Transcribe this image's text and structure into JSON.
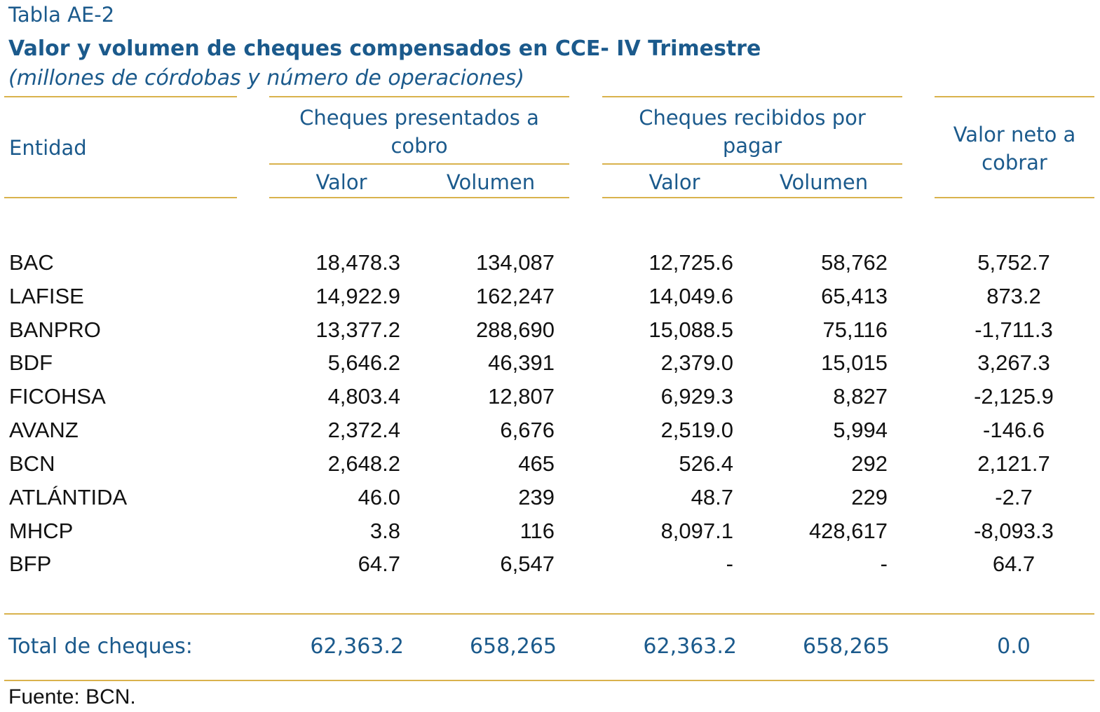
{
  "header": {
    "label": "Tabla AE-2",
    "title": "Valor y volumen de cheques compensados en CCE- IV Trimestre",
    "subtitle": "(millones de córdobas y número de operaciones)"
  },
  "columns": {
    "entity": "Entidad",
    "group_presented_line1": "Cheques presentados a",
    "group_presented_line2": "cobro",
    "group_received_line1": "Cheques recibidos por",
    "group_received_line2": "pagar",
    "net_line1": "Valor neto a",
    "net_line2": "cobrar",
    "valor": "Valor",
    "volumen": "Volumen"
  },
  "rows": [
    {
      "entity": "BAC",
      "pres_valor": "18,478.3",
      "pres_volumen": "134,087",
      "rec_valor": "12,725.6",
      "rec_volumen": "58,762",
      "net": "5,752.7"
    },
    {
      "entity": "LAFISE",
      "pres_valor": "14,922.9",
      "pres_volumen": "162,247",
      "rec_valor": "14,049.6",
      "rec_volumen": "65,413",
      "net": "873.2"
    },
    {
      "entity": "BANPRO",
      "pres_valor": "13,377.2",
      "pres_volumen": "288,690",
      "rec_valor": "15,088.5",
      "rec_volumen": "75,116",
      "net": "-1,711.3"
    },
    {
      "entity": "BDF",
      "pres_valor": "5,646.2",
      "pres_volumen": "46,391",
      "rec_valor": "2,379.0",
      "rec_volumen": "15,015",
      "net": "3,267.3"
    },
    {
      "entity": "FICOHSA",
      "pres_valor": "4,803.4",
      "pres_volumen": "12,807",
      "rec_valor": "6,929.3",
      "rec_volumen": "8,827",
      "net": "-2,125.9"
    },
    {
      "entity": "AVANZ",
      "pres_valor": "2,372.4",
      "pres_volumen": "6,676",
      "rec_valor": "2,519.0",
      "rec_volumen": "5,994",
      "net": "-146.6"
    },
    {
      "entity": "BCN",
      "pres_valor": "2,648.2",
      "pres_volumen": "465",
      "rec_valor": "526.4",
      "rec_volumen": "292",
      "net": "2,121.7"
    },
    {
      "entity": "ATLÁNTIDA",
      "pres_valor": "46.0",
      "pres_volumen": "239",
      "rec_valor": "48.7",
      "rec_volumen": "229",
      "net": "-2.7"
    },
    {
      "entity": "MHCP",
      "pres_valor": "3.8",
      "pres_volumen": "116",
      "rec_valor": "8,097.1",
      "rec_volumen": "428,617",
      "net": "-8,093.3"
    },
    {
      "entity": "BFP",
      "pres_valor": "64.7",
      "pres_volumen": "6,547",
      "rec_valor": "-",
      "rec_volumen": "-",
      "net": "64.7"
    }
  ],
  "total": {
    "label": "Total de cheques:",
    "pres_valor": "62,363.2",
    "pres_volumen": "658,265",
    "rec_valor": "62,363.2",
    "rec_volumen": "658,265",
    "net": "0.0"
  },
  "footer": {
    "source": "Fuente: BCN."
  },
  "colors": {
    "text_blue": "#1b5a8c",
    "rule_gold": "#d9b24c"
  }
}
